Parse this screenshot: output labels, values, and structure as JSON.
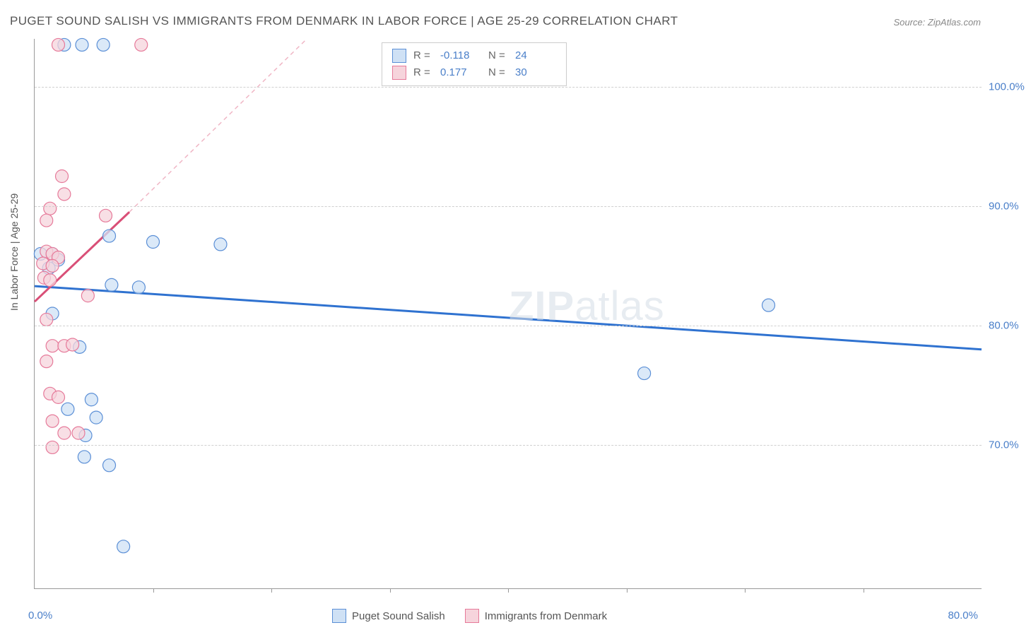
{
  "title": "PUGET SOUND SALISH VS IMMIGRANTS FROM DENMARK IN LABOR FORCE | AGE 25-29 CORRELATION CHART",
  "source_label": "Source: ZipAtlas.com",
  "ylabel": "In Labor Force | Age 25-29",
  "watermark_bold": "ZIP",
  "watermark_light": "atlas",
  "chart": {
    "type": "scatter",
    "xlim": [
      0,
      80
    ],
    "ylim": [
      58,
      104
    ],
    "xticks_minor": [
      10,
      20,
      30,
      40,
      50,
      60,
      70
    ],
    "yticks": [
      70,
      80,
      90,
      100
    ],
    "ytick_labels": [
      "70.0%",
      "80.0%",
      "90.0%",
      "100.0%"
    ],
    "xaxis_min_label": "0.0%",
    "xaxis_max_label": "80.0%",
    "grid_color": "#d0d0d0",
    "axis_color": "#999999",
    "background_color": "#ffffff",
    "series": [
      {
        "name": "Puget Sound Salish",
        "marker_fill": "#cfe1f5",
        "marker_stroke": "#5b8fd6",
        "marker_radius": 9,
        "trend": {
          "x1": 0,
          "y1": 83.3,
          "x2": 80,
          "y2": 78.0,
          "color": "#2f72d0",
          "width": 3,
          "dash": "none"
        },
        "trend_extrap": null,
        "points": [
          [
            2.5,
            103.5
          ],
          [
            4.0,
            103.5
          ],
          [
            5.8,
            103.5
          ],
          [
            0.5,
            86.0
          ],
          [
            1.5,
            86.0
          ],
          [
            2.0,
            85.5
          ],
          [
            6.3,
            87.5
          ],
          [
            10.0,
            87.0
          ],
          [
            15.7,
            86.8
          ],
          [
            1.2,
            84.8
          ],
          [
            6.5,
            83.4
          ],
          [
            8.8,
            83.2
          ],
          [
            1.5,
            81.0
          ],
          [
            62.0,
            81.7
          ],
          [
            3.8,
            78.2
          ],
          [
            51.5,
            76.0
          ],
          [
            4.8,
            73.8
          ],
          [
            2.8,
            73.0
          ],
          [
            5.2,
            72.3
          ],
          [
            4.3,
            70.8
          ],
          [
            4.2,
            69.0
          ],
          [
            6.3,
            68.3
          ],
          [
            7.5,
            61.5
          ]
        ]
      },
      {
        "name": "Immigrants from Denmark",
        "marker_fill": "#f6d4dc",
        "marker_stroke": "#e67a9a",
        "marker_radius": 9,
        "trend": {
          "x1": 0,
          "y1": 82.0,
          "x2": 8.0,
          "y2": 89.5,
          "color": "#d94f77",
          "width": 3,
          "dash": "none"
        },
        "trend_extrap": {
          "x1": 8.0,
          "y1": 89.5,
          "x2": 23.0,
          "y2": 104.0,
          "color": "#f0b6c5",
          "width": 1.5,
          "dash": "6,5"
        },
        "points": [
          [
            2.0,
            103.5
          ],
          [
            9.0,
            103.5
          ],
          [
            2.3,
            92.5
          ],
          [
            2.5,
            91.0
          ],
          [
            1.3,
            89.8
          ],
          [
            1.0,
            88.8
          ],
          [
            6.0,
            89.2
          ],
          [
            1.0,
            86.2
          ],
          [
            1.5,
            86.0
          ],
          [
            2.0,
            85.7
          ],
          [
            0.7,
            85.2
          ],
          [
            1.5,
            85.0
          ],
          [
            0.8,
            84.0
          ],
          [
            1.3,
            83.8
          ],
          [
            4.5,
            82.5
          ],
          [
            1.0,
            80.5
          ],
          [
            1.5,
            78.3
          ],
          [
            2.5,
            78.3
          ],
          [
            3.2,
            78.4
          ],
          [
            1.0,
            77.0
          ],
          [
            1.3,
            74.3
          ],
          [
            2.0,
            74.0
          ],
          [
            1.5,
            72.0
          ],
          [
            2.5,
            71.0
          ],
          [
            3.7,
            71.0
          ],
          [
            1.5,
            69.8
          ]
        ]
      }
    ],
    "legend_top": {
      "rows": [
        {
          "swatch_fill": "#cfe1f5",
          "swatch_stroke": "#5b8fd6",
          "r_label": "R =",
          "r_value": "-0.118",
          "n_label": "N =",
          "n_value": "24"
        },
        {
          "swatch_fill": "#f6d4dc",
          "swatch_stroke": "#e67a9a",
          "r_label": "R =",
          "r_value": "0.177",
          "n_label": "N =",
          "n_value": "30"
        }
      ]
    },
    "legend_bottom": {
      "items": [
        {
          "swatch_fill": "#cfe1f5",
          "swatch_stroke": "#5b8fd6",
          "label": "Puget Sound Salish"
        },
        {
          "swatch_fill": "#f6d4dc",
          "swatch_stroke": "#e67a9a",
          "label": "Immigrants from Denmark"
        }
      ]
    }
  }
}
